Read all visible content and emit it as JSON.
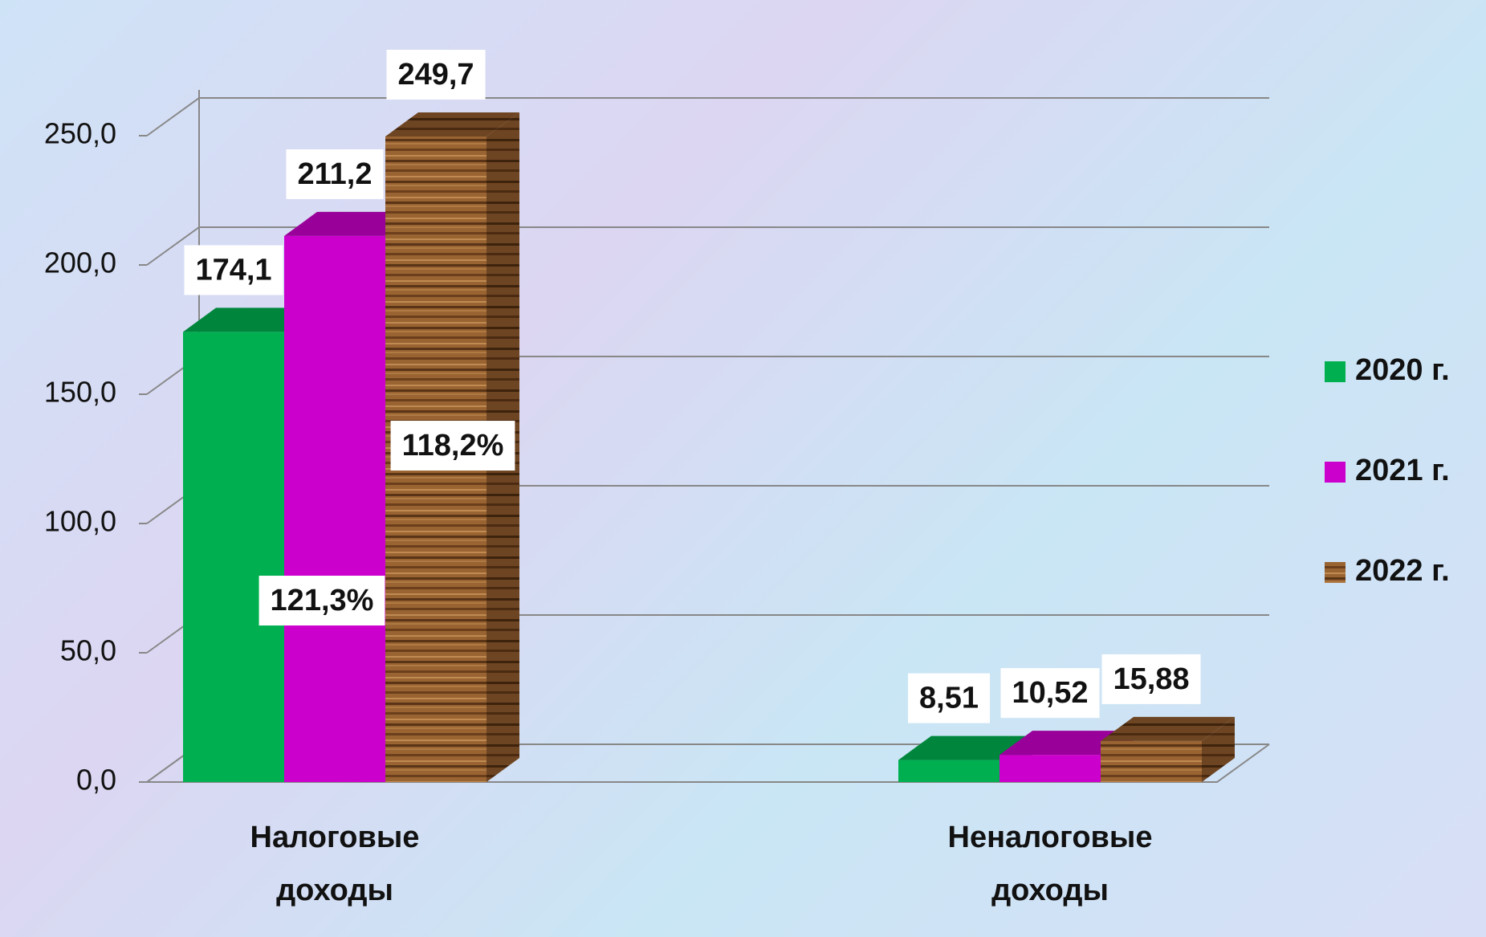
{
  "chart_data": {
    "type": "bar3d",
    "categories": [
      "Налоговые доходы",
      "Неналоговые доходы"
    ],
    "series": [
      {
        "name": "2020 г.",
        "color": "#00b050",
        "values": [
          174.1,
          8.51
        ],
        "value_labels": [
          "174,1",
          "8,51"
        ]
      },
      {
        "name": "2021 г.",
        "color": "#cc00cc",
        "values": [
          211.2,
          10.52
        ],
        "value_labels": [
          "211,2",
          "10,52"
        ]
      },
      {
        "name": "2022 г.",
        "color": "#8b5a2b",
        "values": [
          249.7,
          15.88
        ],
        "value_labels": [
          "249,7",
          "15,88"
        ]
      }
    ],
    "annotations": [
      "121,3%",
      "118,2%"
    ],
    "ylim": [
      0,
      250
    ],
    "yticks": [
      {
        "value": 0,
        "label": "0,0"
      },
      {
        "value": 50,
        "label": "50,0"
      },
      {
        "value": 100,
        "label": "100,0"
      },
      {
        "value": 150,
        "label": "150,0"
      },
      {
        "value": 200,
        "label": "200,0"
      },
      {
        "value": 250,
        "label": "250,0"
      }
    ],
    "grid": true,
    "legend": "right"
  }
}
